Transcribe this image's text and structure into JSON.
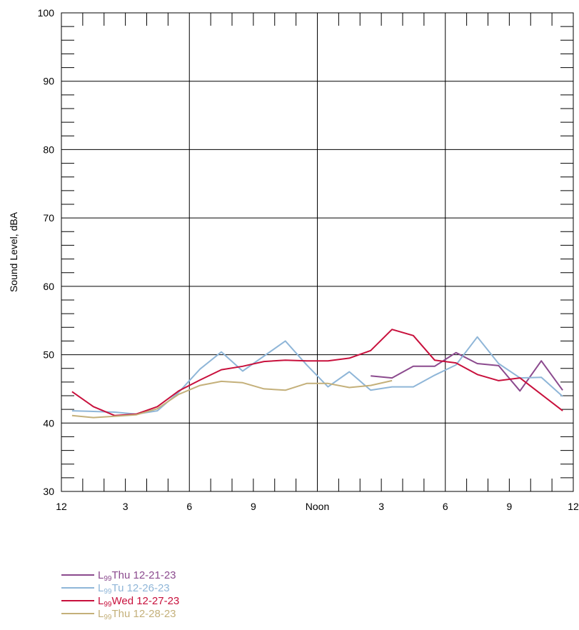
{
  "chart_data": {
    "type": "line",
    "ylabel": "Sound Level, dBA",
    "xlabel": "",
    "ylim": [
      30,
      100
    ],
    "xlim": [
      0,
      24
    ],
    "grid": true,
    "y_ticks": [
      30,
      40,
      50,
      60,
      70,
      80,
      90,
      100
    ],
    "x_ticks": [
      0,
      3,
      6,
      9,
      12,
      15,
      18,
      21,
      24
    ],
    "x_tick_labels": [
      "12",
      "3",
      "6",
      "9",
      "Noon",
      "3",
      "6",
      "9",
      "12"
    ],
    "legend_position": "bottom-left",
    "series": [
      {
        "name": "Thu 12-21-23",
        "prefix": "L",
        "subscript": "99",
        "color": "#8B4A8E",
        "x": [
          14.5,
          15.5,
          16.5,
          17.5,
          18.5,
          19.5,
          20.5,
          21.5,
          22.5,
          23.5
        ],
        "y": [
          46.9,
          46.6,
          48.3,
          48.3,
          50.3,
          48.7,
          48.4,
          44.7,
          49.1,
          44.8
        ]
      },
      {
        "name": "Tu 12-26-23",
        "prefix": "L",
        "subscript": "99",
        "color": "#8FB6D8",
        "x": [
          0.5,
          1.5,
          2.5,
          3.5,
          4.5,
          5.5,
          6.5,
          7.5,
          8.5,
          9.5,
          10.5,
          11.5,
          12.5,
          13.5,
          14.5,
          15.5,
          16.5,
          17.5,
          18.5,
          19.5,
          20.5,
          21.5,
          22.5,
          23.5
        ],
        "y": [
          41.8,
          41.7,
          41.6,
          41.3,
          41.8,
          44.5,
          47.9,
          50.4,
          47.6,
          49.8,
          52.0,
          48.5,
          45.3,
          47.5,
          44.8,
          45.3,
          45.3,
          47.0,
          48.5,
          52.6,
          48.7,
          46.6,
          46.7,
          43.9
        ]
      },
      {
        "name": "Wed 12-27-23",
        "prefix": "L",
        "subscript": "99",
        "color": "#C8103C",
        "x": [
          0.5,
          1.5,
          2.5,
          3.5,
          4.5,
          5.5,
          6.5,
          7.5,
          8.5,
          9.5,
          10.5,
          11.5,
          12.5,
          13.5,
          14.5,
          15.5,
          16.5,
          17.5,
          18.5,
          19.5,
          20.5,
          21.5,
          22.5,
          23.5
        ],
        "y": [
          44.6,
          42.4,
          41.1,
          41.3,
          42.4,
          44.7,
          46.3,
          47.8,
          48.3,
          49.0,
          49.2,
          49.1,
          49.1,
          49.5,
          50.6,
          53.7,
          52.8,
          49.2,
          48.8,
          47.1,
          46.2,
          46.6,
          44.2,
          41.8
        ]
      },
      {
        "name": "Thu 12-28-23",
        "prefix": "L",
        "subscript": "99",
        "color": "#C4B07A",
        "x": [
          0.5,
          1.5,
          2.5,
          3.5,
          4.5,
          5.5,
          6.5,
          7.5,
          8.5,
          9.5,
          10.5,
          11.5,
          12.5,
          13.5,
          14.5,
          15.5
        ],
        "y": [
          41.1,
          40.8,
          41.0,
          41.2,
          42.1,
          44.2,
          45.5,
          46.1,
          45.9,
          45.0,
          44.8,
          45.8,
          45.8,
          45.2,
          45.5,
          46.2
        ]
      }
    ]
  }
}
